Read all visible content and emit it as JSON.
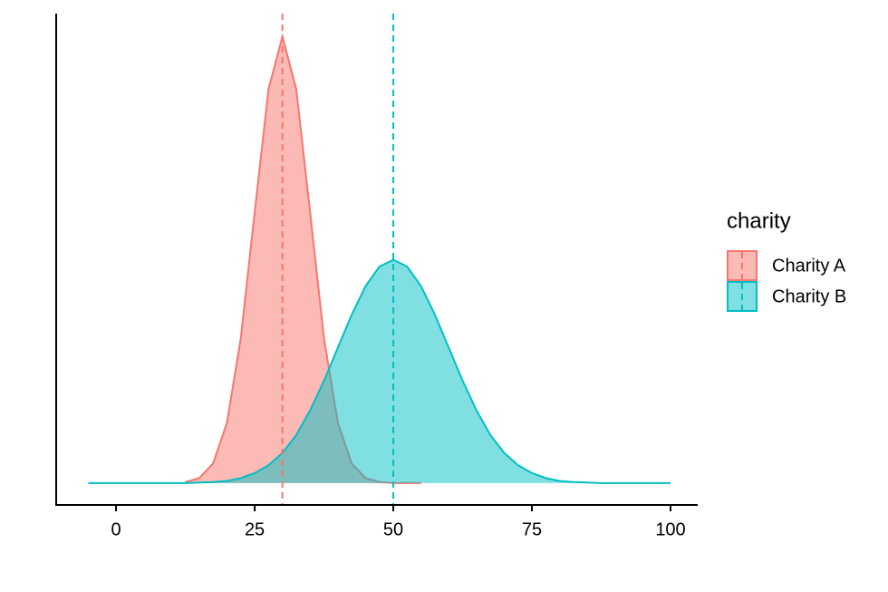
{
  "chart_data": {
    "type": "density",
    "x": [
      -5,
      -2.5,
      0,
      2.5,
      5,
      7.5,
      10,
      12.5,
      15,
      17.5,
      20,
      22.5,
      25,
      27.5,
      30,
      32.5,
      35,
      37.5,
      40,
      42.5,
      45,
      47.5,
      50,
      52.5,
      55,
      57.5,
      60,
      62.5,
      65,
      67.5,
      70,
      72.5,
      75,
      77.5,
      80,
      82.5,
      85,
      87.5,
      90,
      92.5,
      95,
      97.5,
      100
    ],
    "series": [
      {
        "name": "Charity A",
        "color": "#F8766D",
        "mean": 30,
        "values": [
          null,
          null,
          null,
          null,
          null,
          null,
          null,
          0.0002,
          0.0009,
          0.0035,
          0.0108,
          0.0259,
          0.0484,
          0.0704,
          0.0798,
          0.0704,
          0.0484,
          0.0259,
          0.0108,
          0.0035,
          0.0009,
          0.0002,
          0,
          0,
          0,
          null,
          null,
          null,
          null,
          null,
          null,
          null,
          null,
          null,
          null,
          null,
          null,
          null,
          null,
          null,
          null,
          null,
          null
        ]
      },
      {
        "name": "Charity B",
        "color": "#00BFC4",
        "mean": 50,
        "values": [
          0,
          0,
          0,
          0,
          0,
          0,
          0,
          0,
          0.0001,
          0.0002,
          0.0004,
          0.0009,
          0.0018,
          0.0032,
          0.0054,
          0.0086,
          0.013,
          0.0183,
          0.0242,
          0.0301,
          0.0352,
          0.0387,
          0.0399,
          0.0387,
          0.0352,
          0.0301,
          0.0242,
          0.0183,
          0.013,
          0.0086,
          0.0054,
          0.0032,
          0.0018,
          0.0009,
          0.0004,
          0.0002,
          0.0001,
          0,
          0,
          0,
          0,
          0,
          0
        ]
      }
    ],
    "xlim": [
      -10.8,
      104.9
    ],
    "xticks": [
      0,
      25,
      50,
      75,
      100
    ],
    "ylim": [
      -0.0039,
      0.0839
    ],
    "legend_title": "charity",
    "legend": "right"
  }
}
